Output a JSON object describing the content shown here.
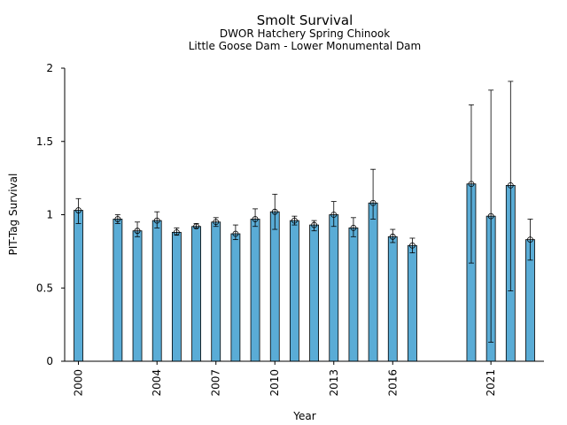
{
  "chart_data": {
    "type": "bar",
    "title": "Smolt Survival",
    "subtitle_1": "DWOR Hatchery Spring Chinook",
    "subtitle_2": "Little Goose Dam - Lower Monumental Dam",
    "xlabel": "Year",
    "ylabel": "PIT-Tag Survival",
    "xlim": [
      1999.3,
      2023.7
    ],
    "ylim": [
      0,
      2
    ],
    "x_ticks": [
      2000,
      2004,
      2007,
      2010,
      2013,
      2016,
      2021
    ],
    "x_tick_labels": [
      "2000",
      "2004",
      "2007",
      "2010",
      "2013",
      "2016",
      "2021"
    ],
    "y_ticks": [
      0,
      0.5,
      1,
      1.5,
      2
    ],
    "y_tick_labels": [
      "0",
      "0.5",
      "1",
      "1.5",
      "2"
    ],
    "bar_color": "#5aacd6",
    "grid": false,
    "points": [
      {
        "year": 2000,
        "value": 1.03,
        "low": 0.94,
        "high": 1.11
      },
      {
        "year": 2002,
        "value": 0.97,
        "low": 0.94,
        "high": 1.0
      },
      {
        "year": 2003,
        "value": 0.89,
        "low": 0.85,
        "high": 0.95
      },
      {
        "year": 2004,
        "value": 0.96,
        "low": 0.91,
        "high": 1.02
      },
      {
        "year": 2005,
        "value": 0.88,
        "low": 0.86,
        "high": 0.91
      },
      {
        "year": 2006,
        "value": 0.92,
        "low": 0.91,
        "high": 0.94
      },
      {
        "year": 2007,
        "value": 0.95,
        "low": 0.92,
        "high": 0.98
      },
      {
        "year": 2008,
        "value": 0.87,
        "low": 0.83,
        "high": 0.93
      },
      {
        "year": 2009,
        "value": 0.97,
        "low": 0.92,
        "high": 1.04
      },
      {
        "year": 2010,
        "value": 1.02,
        "low": 0.9,
        "high": 1.14
      },
      {
        "year": 2011,
        "value": 0.96,
        "low": 0.93,
        "high": 0.99
      },
      {
        "year": 2012,
        "value": 0.93,
        "low": 0.89,
        "high": 0.96
      },
      {
        "year": 2013,
        "value": 1.0,
        "low": 0.92,
        "high": 1.09
      },
      {
        "year": 2014,
        "value": 0.91,
        "low": 0.85,
        "high": 0.98
      },
      {
        "year": 2015,
        "value": 1.08,
        "low": 0.97,
        "high": 1.31
      },
      {
        "year": 2016,
        "value": 0.85,
        "low": 0.81,
        "high": 0.9
      },
      {
        "year": 2017,
        "value": 0.79,
        "low": 0.74,
        "high": 0.84
      },
      {
        "year": 2020,
        "value": 1.21,
        "low": 0.67,
        "high": 1.75
      },
      {
        "year": 2021,
        "value": 0.99,
        "low": 0.13,
        "high": 1.85
      },
      {
        "year": 2022,
        "value": 1.2,
        "low": 0.48,
        "high": 1.91
      },
      {
        "year": 2023,
        "value": 0.83,
        "low": 0.69,
        "high": 0.97
      }
    ]
  }
}
